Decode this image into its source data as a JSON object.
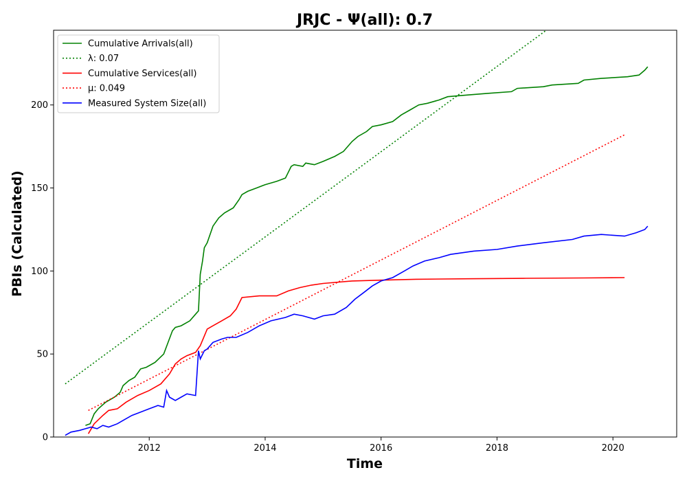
{
  "chart_data": {
    "type": "line",
    "title": "JRJC -  Ψ(all): 0.7",
    "xlabel": "Time",
    "ylabel": "PBIs (Calculated)",
    "xlim": [
      2010.35,
      2021.1
    ],
    "ylim": [
      0,
      245
    ],
    "x_ticks": [
      2012,
      2014,
      2016,
      2018,
      2020
    ],
    "x_tick_labels": [
      "2012",
      "2014",
      "2016",
      "2018",
      "2020"
    ],
    "y_ticks": [
      0,
      50,
      100,
      150,
      200
    ],
    "y_tick_labels": [
      "0",
      "50",
      "100",
      "150",
      "200"
    ],
    "grid": false,
    "legend_position": "top-left",
    "series": [
      {
        "name": "Cumulative Arrivals(all)",
        "color": "#008000",
        "style": "solid",
        "x": [
          2010.9,
          2010.98,
          2011.05,
          2011.12,
          2011.25,
          2011.4,
          2011.5,
          2011.55,
          2011.65,
          2011.75,
          2011.85,
          2011.95,
          2012.1,
          2012.25,
          2012.4,
          2012.45,
          2012.55,
          2012.7,
          2012.8,
          2012.85,
          2012.88,
          2012.92,
          2012.95,
          2013.0,
          2013.1,
          2013.2,
          2013.3,
          2013.45,
          2013.55,
          2013.6,
          2013.7,
          2013.85,
          2014.0,
          2014.2,
          2014.35,
          2014.45,
          2014.5,
          2014.65,
          2014.7,
          2014.85,
          2015.0,
          2015.2,
          2015.35,
          2015.5,
          2015.6,
          2015.75,
          2015.85,
          2016.0,
          2016.2,
          2016.35,
          2016.5,
          2016.65,
          2016.8,
          2017.0,
          2017.15,
          2017.5,
          2017.85,
          2018.25,
          2018.35,
          2018.8,
          2018.95,
          2019.4,
          2019.5,
          2019.8,
          2020.25,
          2020.45,
          2020.55,
          2020.6
        ],
        "y": [
          7,
          8,
          14,
          17,
          21,
          24,
          27,
          31,
          34,
          36,
          41,
          42,
          45,
          50,
          64,
          66,
          67,
          70,
          74,
          76,
          98,
          106,
          114,
          117,
          127,
          132,
          135,
          138,
          143,
          146,
          148,
          150,
          152,
          154,
          156,
          163,
          164,
          163,
          165,
          164,
          166,
          169,
          172,
          178,
          181,
          184,
          187,
          188,
          190,
          194,
          197,
          200,
          201,
          203,
          205,
          206,
          207,
          208,
          210,
          211,
          212,
          213,
          215,
          216,
          217,
          218,
          221,
          223
        ]
      },
      {
        "name": "λ: 0.07",
        "color": "#008000",
        "style": "dotted",
        "x": [
          2010.55,
          2018.85
        ],
        "y": [
          32,
          245
        ]
      },
      {
        "name": "Cumulative Services(all)",
        "color": "#ff0000",
        "style": "solid",
        "x": [
          2010.95,
          2011.05,
          2011.2,
          2011.3,
          2011.45,
          2011.6,
          2011.8,
          2012.0,
          2012.2,
          2012.35,
          2012.45,
          2012.55,
          2012.65,
          2012.8,
          2012.88,
          2013.0,
          2013.1,
          2013.25,
          2013.4,
          2013.5,
          2013.6,
          2013.9,
          2014.2,
          2014.4,
          2014.6,
          2014.8,
          2015.0,
          2015.5,
          2016.0,
          2016.6,
          2017.5,
          2018.5,
          2019.5,
          2020.2
        ],
        "y": [
          2,
          8,
          13,
          16,
          17,
          21,
          25,
          28,
          32,
          38,
          44,
          47,
          49,
          51,
          55,
          65,
          67,
          70,
          73,
          77,
          84,
          85,
          85,
          88,
          90,
          91.5,
          92.5,
          94,
          94.5,
          95,
          95.3,
          95.6,
          95.8,
          96
        ]
      },
      {
        "name": "μ: 0.049",
        "color": "#ff0000",
        "style": "dotted",
        "x": [
          2010.95,
          2020.2
        ],
        "y": [
          16,
          182
        ]
      },
      {
        "name": "Measured System Size(all)",
        "color": "#0000ff",
        "style": "solid",
        "x": [
          2010.55,
          2010.65,
          2010.8,
          2010.9,
          2011.0,
          2011.1,
          2011.2,
          2011.3,
          2011.45,
          2011.55,
          2011.7,
          2011.85,
          2012.0,
          2012.15,
          2012.25,
          2012.3,
          2012.35,
          2012.45,
          2012.55,
          2012.65,
          2012.8,
          2012.85,
          2012.88,
          2012.95,
          2013.0,
          2013.1,
          2013.25,
          2013.35,
          2013.5,
          2013.7,
          2013.9,
          2014.1,
          2014.35,
          2014.5,
          2014.65,
          2014.85,
          2015.0,
          2015.2,
          2015.4,
          2015.55,
          2015.7,
          2015.85,
          2016.0,
          2016.2,
          2016.4,
          2016.55,
          2016.75,
          2017.0,
          2017.2,
          2017.6,
          2018.0,
          2018.35,
          2018.8,
          2019.3,
          2019.5,
          2019.8,
          2020.2,
          2020.4,
          2020.55,
          2020.6
        ],
        "y": [
          1,
          3,
          4,
          5,
          6,
          5,
          7,
          6,
          8,
          10,
          13,
          15,
          17,
          19,
          18,
          28,
          24,
          22,
          24,
          26,
          25,
          52,
          47,
          52,
          53,
          57,
          59,
          60,
          60,
          63,
          67,
          70,
          72,
          74,
          73,
          71,
          73,
          74,
          78,
          83,
          87,
          91,
          94,
          96,
          100,
          103,
          106,
          108,
          110,
          112,
          113,
          115,
          117,
          119,
          121,
          122,
          121,
          123,
          125,
          127
        ]
      }
    ]
  }
}
